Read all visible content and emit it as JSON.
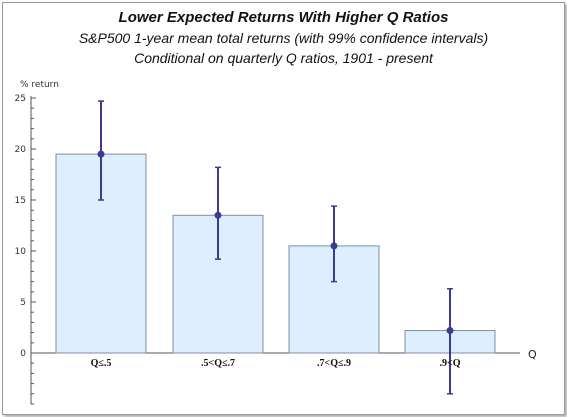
{
  "chart_data": {
    "type": "bar",
    "title": "Lower Expected Returns With Higher Q Ratios",
    "subtitles": [
      "S&P500 1-year mean total returns (with 99% confidence intervals)",
      "Conditional on quarterly Q ratios, 1901 - present"
    ],
    "ylabel": "% return",
    "xlabel": "Q",
    "categories": [
      "Q≤.5",
      ".5<Q≤.7",
      ".7<Q≤.9",
      ".9<Q"
    ],
    "values": [
      19.5,
      13.5,
      10.5,
      2.2
    ],
    "ci_low": [
      15.0,
      9.2,
      7.0,
      -4.0
    ],
    "ci_high": [
      24.7,
      18.2,
      14.4,
      6.3
    ],
    "ylim": [
      -5,
      25
    ],
    "yticks": [
      0,
      5,
      10,
      15,
      20,
      25
    ],
    "grid": false,
    "colors": {
      "bar_fill": "#ddeeff",
      "bar_stroke": "#7f8f9f",
      "errorbar": "#3b3b8f",
      "axis": "#555555"
    }
  }
}
